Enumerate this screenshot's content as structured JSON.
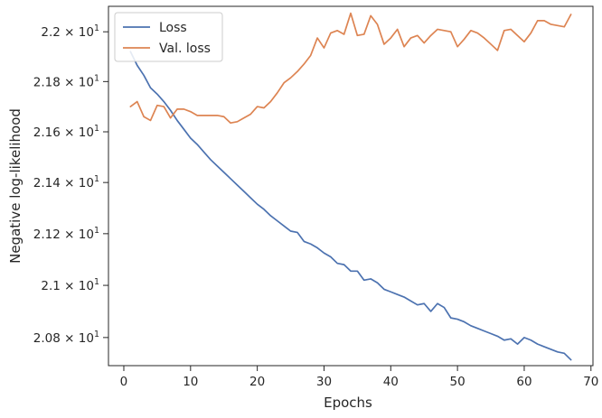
{
  "chart_data": {
    "type": "line",
    "xlabel": "Epochs",
    "ylabel": "Negative log-likelihood",
    "xlim": [
      -2.3,
      70.3
    ],
    "ylim": [
      20.693,
      22.103
    ],
    "y_scale": "log",
    "grid": false,
    "legend_position": "top-left",
    "x_ticks": [
      {
        "value": 0,
        "label": "0"
      },
      {
        "value": 10,
        "label": "10"
      },
      {
        "value": 20,
        "label": "20"
      },
      {
        "value": 30,
        "label": "30"
      },
      {
        "value": 40,
        "label": "40"
      },
      {
        "value": 50,
        "label": "50"
      },
      {
        "value": 60,
        "label": "60"
      },
      {
        "value": 70,
        "label": "70"
      }
    ],
    "y_ticks": [
      {
        "value": 20.8,
        "mantissa": "2.08",
        "base": "10",
        "exp": "1"
      },
      {
        "value": 21.0,
        "mantissa": "2.1",
        "base": "10",
        "exp": "1"
      },
      {
        "value": 21.2,
        "mantissa": "2.12",
        "base": "10",
        "exp": "1"
      },
      {
        "value": 21.4,
        "mantissa": "2.14",
        "base": "10",
        "exp": "1"
      },
      {
        "value": 21.6,
        "mantissa": "2.16",
        "base": "10",
        "exp": "1"
      },
      {
        "value": 21.8,
        "mantissa": "2.18",
        "base": "10",
        "exp": "1"
      },
      {
        "value": 22.0,
        "mantissa": "2.2",
        "base": "10",
        "exp": "1"
      }
    ],
    "series": [
      {
        "name": "Loss",
        "color": "#4c72b0",
        "x": [
          1,
          2,
          3,
          4,
          5,
          6,
          7,
          8,
          9,
          10,
          11,
          12,
          13,
          14,
          15,
          16,
          17,
          18,
          19,
          20,
          21,
          22,
          23,
          24,
          25,
          26,
          27,
          28,
          29,
          30,
          31,
          32,
          33,
          34,
          35,
          36,
          37,
          38,
          39,
          40,
          41,
          42,
          43,
          44,
          45,
          46,
          47,
          48,
          49,
          50,
          51,
          52,
          53,
          54,
          55,
          56,
          57,
          58,
          59,
          60,
          61,
          62,
          63,
          64,
          65,
          66,
          67
        ],
        "y": [
          21.92,
          21.865,
          21.825,
          21.775,
          21.75,
          21.72,
          21.685,
          21.645,
          21.61,
          21.575,
          21.55,
          21.52,
          21.49,
          21.465,
          21.44,
          21.415,
          21.39,
          21.365,
          21.34,
          21.315,
          21.295,
          21.27,
          21.25,
          21.23,
          21.21,
          21.205,
          21.17,
          21.16,
          21.145,
          21.125,
          21.11,
          21.085,
          21.08,
          21.055,
          21.055,
          21.02,
          21.025,
          21.01,
          20.985,
          20.975,
          20.965,
          20.955,
          20.94,
          20.925,
          20.93,
          20.9,
          20.93,
          20.915,
          20.875,
          20.87,
          20.86,
          20.845,
          20.835,
          20.825,
          20.815,
          20.805,
          20.79,
          20.795,
          20.775,
          20.8,
          20.79,
          20.775,
          20.765,
          20.755,
          20.745,
          20.74,
          20.715
        ]
      },
      {
        "name": "Val. loss",
        "color": "#dd8452",
        "x": [
          1,
          2,
          3,
          4,
          5,
          6,
          7,
          8,
          9,
          10,
          11,
          12,
          13,
          14,
          15,
          16,
          17,
          18,
          19,
          20,
          21,
          22,
          23,
          24,
          25,
          26,
          27,
          28,
          29,
          30,
          31,
          32,
          33,
          34,
          35,
          36,
          37,
          38,
          39,
          40,
          41,
          42,
          43,
          44,
          45,
          46,
          47,
          48,
          49,
          50,
          51,
          52,
          53,
          54,
          55,
          56,
          57,
          58,
          59,
          60,
          61,
          62,
          63,
          64,
          65,
          66,
          67
        ],
        "y": [
          21.7,
          21.72,
          21.66,
          21.645,
          21.705,
          21.7,
          21.655,
          21.69,
          21.69,
          21.68,
          21.665,
          21.665,
          21.665,
          21.665,
          21.66,
          21.635,
          21.64,
          21.655,
          21.67,
          21.7,
          21.695,
          21.72,
          21.755,
          21.795,
          21.815,
          21.84,
          21.87,
          21.905,
          21.975,
          21.935,
          21.995,
          22.005,
          21.99,
          22.075,
          21.985,
          21.99,
          22.065,
          22.03,
          21.95,
          21.975,
          22.01,
          21.94,
          21.975,
          21.985,
          21.955,
          21.985,
          22.01,
          22.005,
          22.0,
          21.94,
          21.97,
          22.005,
          21.995,
          21.975,
          21.95,
          21.925,
          22.005,
          22.01,
          21.985,
          21.96,
          21.995,
          22.045,
          22.045,
          22.03,
          22.025,
          22.02,
          22.07
        ]
      }
    ]
  }
}
